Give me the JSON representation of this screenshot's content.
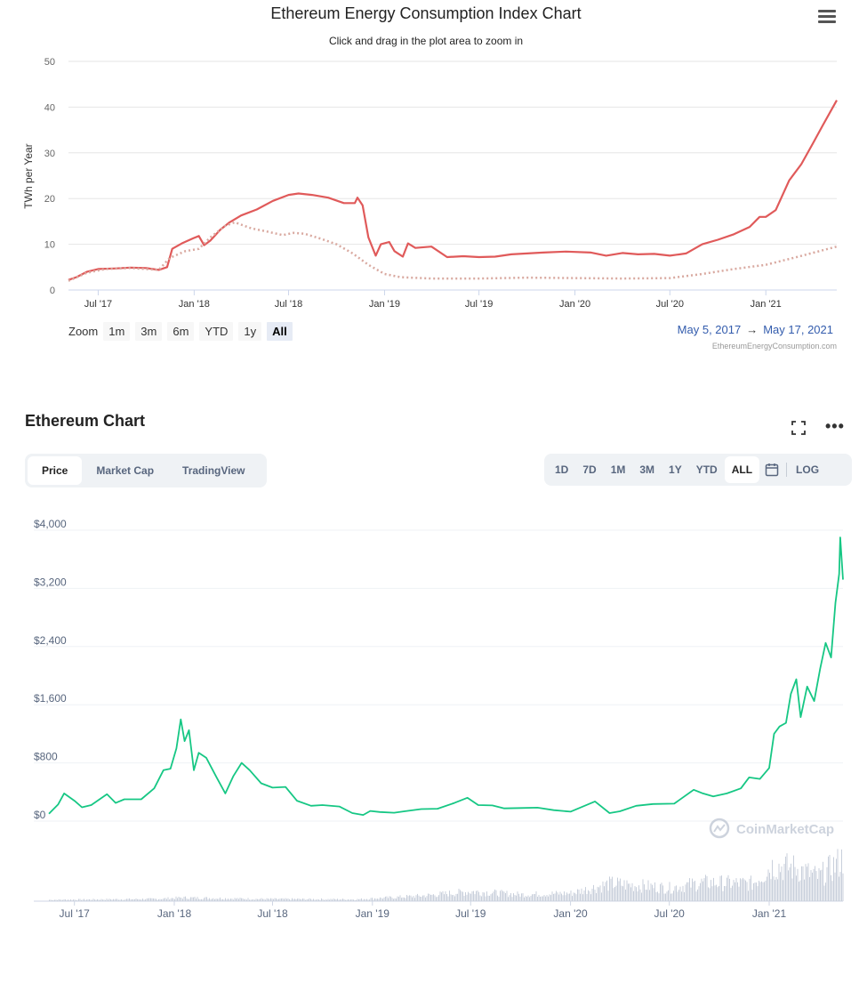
{
  "energy_chart": {
    "title": "Ethereum Energy Consumption Index Chart",
    "subtitle": "Click and drag in the plot area to zoom in",
    "zoom_label": "Zoom",
    "zoom_buttons": [
      "1m",
      "3m",
      "6m",
      "YTD",
      "1y",
      "All"
    ],
    "zoom_active": "All",
    "date_from": "May 5, 2017",
    "date_arrow": "→",
    "date_to": "May 17, 2021",
    "credits": "EthereumEnergyConsumption.com",
    "colors": {
      "main": "#e05a5a",
      "min": "#d9a9a0",
      "grid": "#e6e6e6",
      "axis": "#333333"
    }
  },
  "eth_chart": {
    "title": "Ethereum Chart",
    "view_tabs": [
      "Price",
      "Market Cap",
      "TradingView"
    ],
    "view_active": "Price",
    "range_tabs": [
      "1D",
      "7D",
      "1M",
      "3M",
      "1Y",
      "YTD",
      "ALL"
    ],
    "range_active": "ALL",
    "log_label": "LOG",
    "watermark": "CoinMarketCap",
    "colors": {
      "line": "#16c784",
      "volume": "#c8cfdb",
      "grid": "#eff2f5",
      "label": "#58667e"
    },
    "icons": {
      "fullscreen": "fullscreen-icon",
      "more": "more-icon",
      "calendar": "calendar-icon",
      "logo": "coinmarketcap-logo-icon"
    }
  },
  "chart_data": [
    {
      "type": "line",
      "title": "Ethereum Energy Consumption Index Chart",
      "ylabel": "TWh per Year",
      "xlabel": "",
      "ylim": [
        0,
        50
      ],
      "xlim": [
        "2017-05-05",
        "2021-05-17"
      ],
      "y_ticks": [
        "0",
        "10",
        "20",
        "30",
        "40",
        "50"
      ],
      "x_ticks": [
        {
          "label": "Jul '17",
          "date": "2017-07-01"
        },
        {
          "label": "Jan '18",
          "date": "2018-01-01"
        },
        {
          "label": "Jul '18",
          "date": "2018-07-01"
        },
        {
          "label": "Jan '19",
          "date": "2019-01-01"
        },
        {
          "label": "Jul '19",
          "date": "2019-07-01"
        },
        {
          "label": "Jan '20",
          "date": "2020-01-01"
        },
        {
          "label": "Jul '20",
          "date": "2020-07-01"
        },
        {
          "label": "Jan '21",
          "date": "2021-01-01"
        }
      ],
      "grid": true,
      "series": [
        {
          "style": "solid",
          "points": [
            [
              "2017-05-05",
              2.2
            ],
            [
              "2017-05-20",
              2.8
            ],
            [
              "2017-06-10",
              4.0
            ],
            [
              "2017-07-01",
              4.6
            ],
            [
              "2017-08-01",
              4.7
            ],
            [
              "2017-09-01",
              4.9
            ],
            [
              "2017-10-01",
              4.8
            ],
            [
              "2017-10-25",
              4.4
            ],
            [
              "2017-11-10",
              5.0
            ],
            [
              "2017-11-20",
              9.0
            ],
            [
              "2017-12-10",
              10.3
            ],
            [
              "2017-12-30",
              11.3
            ],
            [
              "2018-01-10",
              11.8
            ],
            [
              "2018-01-20",
              9.8
            ],
            [
              "2018-02-01",
              10.8
            ],
            [
              "2018-02-20",
              13.2
            ],
            [
              "2018-03-10",
              14.8
            ],
            [
              "2018-04-01",
              16.3
            ],
            [
              "2018-05-01",
              17.6
            ],
            [
              "2018-06-01",
              19.5
            ],
            [
              "2018-07-01",
              20.8
            ],
            [
              "2018-07-20",
              21.1
            ],
            [
              "2018-08-15",
              20.8
            ],
            [
              "2018-09-15",
              20.2
            ],
            [
              "2018-10-15",
              19.0
            ],
            [
              "2018-11-05",
              19.0
            ],
            [
              "2018-11-10",
              20.2
            ],
            [
              "2018-11-20",
              18.5
            ],
            [
              "2018-12-01",
              11.5
            ],
            [
              "2018-12-15",
              7.5
            ],
            [
              "2018-12-25",
              10.0
            ],
            [
              "2019-01-10",
              10.5
            ],
            [
              "2019-01-20",
              8.5
            ],
            [
              "2019-02-05",
              7.3
            ],
            [
              "2019-02-15",
              10.2
            ],
            [
              "2019-03-01",
              9.2
            ],
            [
              "2019-04-01",
              9.5
            ],
            [
              "2019-05-01",
              7.2
            ],
            [
              "2019-06-01",
              7.4
            ],
            [
              "2019-07-01",
              7.2
            ],
            [
              "2019-08-01",
              7.3
            ],
            [
              "2019-09-01",
              7.8
            ],
            [
              "2019-11-01",
              8.2
            ],
            [
              "2019-12-15",
              8.4
            ],
            [
              "2020-02-01",
              8.2
            ],
            [
              "2020-03-01",
              7.5
            ],
            [
              "2020-04-01",
              8.1
            ],
            [
              "2020-05-01",
              7.8
            ],
            [
              "2020-06-01",
              7.9
            ],
            [
              "2020-07-01",
              7.5
            ],
            [
              "2020-08-01",
              8.0
            ],
            [
              "2020-09-01",
              10.0
            ],
            [
              "2020-10-01",
              11.0
            ],
            [
              "2020-11-01",
              12.2
            ],
            [
              "2020-12-01",
              13.8
            ],
            [
              "2020-12-20",
              16.0
            ],
            [
              "2021-01-01",
              16.0
            ],
            [
              "2021-01-20",
              17.5
            ],
            [
              "2021-02-15",
              24.0
            ],
            [
              "2021-03-10",
              27.5
            ],
            [
              "2021-04-01",
              32.0
            ],
            [
              "2021-04-20",
              36.0
            ],
            [
              "2021-05-17",
              41.5
            ]
          ]
        },
        {
          "style": "dotted",
          "points": [
            [
              "2017-05-05",
              2.0
            ],
            [
              "2017-06-10",
              3.8
            ],
            [
              "2017-07-15",
              4.6
            ],
            [
              "2017-09-01",
              4.8
            ],
            [
              "2017-10-25",
              4.4
            ],
            [
              "2017-11-15",
              7.0
            ],
            [
              "2017-12-15",
              8.5
            ],
            [
              "2018-01-10",
              9.0
            ],
            [
              "2018-02-01",
              11.5
            ],
            [
              "2018-03-01",
              14.0
            ],
            [
              "2018-03-20",
              14.8
            ],
            [
              "2018-04-20",
              13.5
            ],
            [
              "2018-05-20",
              12.8
            ],
            [
              "2018-06-20",
              12.0
            ],
            [
              "2018-07-10",
              12.5
            ],
            [
              "2018-08-01",
              12.3
            ],
            [
              "2018-09-01",
              11.2
            ],
            [
              "2018-10-01",
              10.0
            ],
            [
              "2018-11-01",
              8.0
            ],
            [
              "2018-12-01",
              5.5
            ],
            [
              "2019-01-01",
              3.5
            ],
            [
              "2019-02-01",
              2.8
            ],
            [
              "2019-04-01",
              2.5
            ],
            [
              "2019-07-01",
              2.5
            ],
            [
              "2019-10-01",
              2.7
            ],
            [
              "2020-01-01",
              2.6
            ],
            [
              "2020-04-01",
              2.5
            ],
            [
              "2020-07-01",
              2.6
            ],
            [
              "2020-09-01",
              3.5
            ],
            [
              "2020-11-01",
              4.6
            ],
            [
              "2021-01-01",
              5.5
            ],
            [
              "2021-03-01",
              7.2
            ],
            [
              "2021-05-17",
              9.5
            ]
          ]
        }
      ]
    },
    {
      "type": "line",
      "title": "Ethereum Chart",
      "xlabel": "",
      "ylabel": "",
      "ylim": [
        0,
        4000
      ],
      "xlim": [
        "2017-05-15",
        "2021-05-17"
      ],
      "y_ticks": [
        "$0",
        "$800",
        "$1,600",
        "$2,400",
        "$3,200",
        "$4,000"
      ],
      "x_ticks": [
        {
          "label": "Jul '17",
          "date": "2017-07-01"
        },
        {
          "label": "Jan '18",
          "date": "2018-01-01"
        },
        {
          "label": "Jul '18",
          "date": "2018-07-01"
        },
        {
          "label": "Jan '19",
          "date": "2019-01-01"
        },
        {
          "label": "Jul '19",
          "date": "2019-07-01"
        },
        {
          "label": "Jan '20",
          "date": "2020-01-01"
        },
        {
          "label": "Jul '20",
          "date": "2020-07-01"
        },
        {
          "label": "Jan '21",
          "date": "2021-01-01"
        }
      ],
      "grid": true,
      "series": [
        {
          "points": [
            [
              "2017-05-15",
              100
            ],
            [
              "2017-06-01",
              230
            ],
            [
              "2017-06-12",
              380
            ],
            [
              "2017-07-01",
              280
            ],
            [
              "2017-07-15",
              190
            ],
            [
              "2017-08-01",
              220
            ],
            [
              "2017-08-30",
              370
            ],
            [
              "2017-09-15",
              250
            ],
            [
              "2017-10-01",
              300
            ],
            [
              "2017-11-01",
              300
            ],
            [
              "2017-11-25",
              450
            ],
            [
              "2017-12-12",
              700
            ],
            [
              "2017-12-25",
              720
            ],
            [
              "2018-01-05",
              1000
            ],
            [
              "2018-01-13",
              1400
            ],
            [
              "2018-01-20",
              1100
            ],
            [
              "2018-01-28",
              1250
            ],
            [
              "2018-02-06",
              700
            ],
            [
              "2018-02-15",
              940
            ],
            [
              "2018-03-01",
              870
            ],
            [
              "2018-03-20",
              600
            ],
            [
              "2018-04-05",
              380
            ],
            [
              "2018-04-20",
              620
            ],
            [
              "2018-05-05",
              800
            ],
            [
              "2018-05-20",
              700
            ],
            [
              "2018-06-10",
              520
            ],
            [
              "2018-07-01",
              460
            ],
            [
              "2018-07-25",
              470
            ],
            [
              "2018-08-15",
              280
            ],
            [
              "2018-09-10",
              210
            ],
            [
              "2018-10-01",
              220
            ],
            [
              "2018-11-01",
              200
            ],
            [
              "2018-11-25",
              110
            ],
            [
              "2018-12-15",
              85
            ],
            [
              "2018-12-28",
              140
            ],
            [
              "2019-01-15",
              125
            ],
            [
              "2019-02-10",
              115
            ],
            [
              "2019-03-01",
              135
            ],
            [
              "2019-04-01",
              165
            ],
            [
              "2019-05-01",
              170
            ],
            [
              "2019-06-01",
              250
            ],
            [
              "2019-06-25",
              320
            ],
            [
              "2019-07-15",
              220
            ],
            [
              "2019-08-10",
              215
            ],
            [
              "2019-09-01",
              175
            ],
            [
              "2019-10-01",
              180
            ],
            [
              "2019-11-01",
              185
            ],
            [
              "2019-12-01",
              150
            ],
            [
              "2020-01-01",
              130
            ],
            [
              "2020-02-15",
              270
            ],
            [
              "2020-03-13",
              110
            ],
            [
              "2020-04-01",
              135
            ],
            [
              "2020-05-01",
              210
            ],
            [
              "2020-06-01",
              235
            ],
            [
              "2020-07-10",
              240
            ],
            [
              "2020-08-15",
              430
            ],
            [
              "2020-09-01",
              380
            ],
            [
              "2020-09-20",
              340
            ],
            [
              "2020-10-15",
              380
            ],
            [
              "2020-11-10",
              450
            ],
            [
              "2020-11-25",
              600
            ],
            [
              "2020-12-15",
              580
            ],
            [
              "2021-01-01",
              730
            ],
            [
              "2021-01-10",
              1200
            ],
            [
              "2021-01-20",
              1300
            ],
            [
              "2021-02-01",
              1350
            ],
            [
              "2021-02-10",
              1750
            ],
            [
              "2021-02-20",
              1950
            ],
            [
              "2021-02-28",
              1430
            ],
            [
              "2021-03-12",
              1850
            ],
            [
              "2021-03-25",
              1650
            ],
            [
              "2021-04-05",
              2100
            ],
            [
              "2021-04-15",
              2450
            ],
            [
              "2021-04-25",
              2250
            ],
            [
              "2021-05-03",
              3000
            ],
            [
              "2021-05-10",
              3400
            ],
            [
              "2021-05-12",
              3900
            ],
            [
              "2021-05-17",
              3320
            ]
          ]
        }
      ],
      "volume_levels": [
        [
          "2017-05-15",
          0.03
        ],
        [
          "2017-12-01",
          0.05
        ],
        [
          "2018-01-15",
          0.08
        ],
        [
          "2018-06-01",
          0.05
        ],
        [
          "2018-12-01",
          0.04
        ],
        [
          "2019-04-01",
          0.12
        ],
        [
          "2019-07-01",
          0.22
        ],
        [
          "2019-10-01",
          0.15
        ],
        [
          "2020-01-01",
          0.18
        ],
        [
          "2020-03-15",
          0.4
        ],
        [
          "2020-07-01",
          0.3
        ],
        [
          "2020-09-01",
          0.42
        ],
        [
          "2020-12-01",
          0.4
        ],
        [
          "2021-01-05",
          0.8
        ],
        [
          "2021-02-20",
          0.75
        ],
        [
          "2021-04-01",
          0.55
        ],
        [
          "2021-05-17",
          0.95
        ]
      ]
    }
  ]
}
